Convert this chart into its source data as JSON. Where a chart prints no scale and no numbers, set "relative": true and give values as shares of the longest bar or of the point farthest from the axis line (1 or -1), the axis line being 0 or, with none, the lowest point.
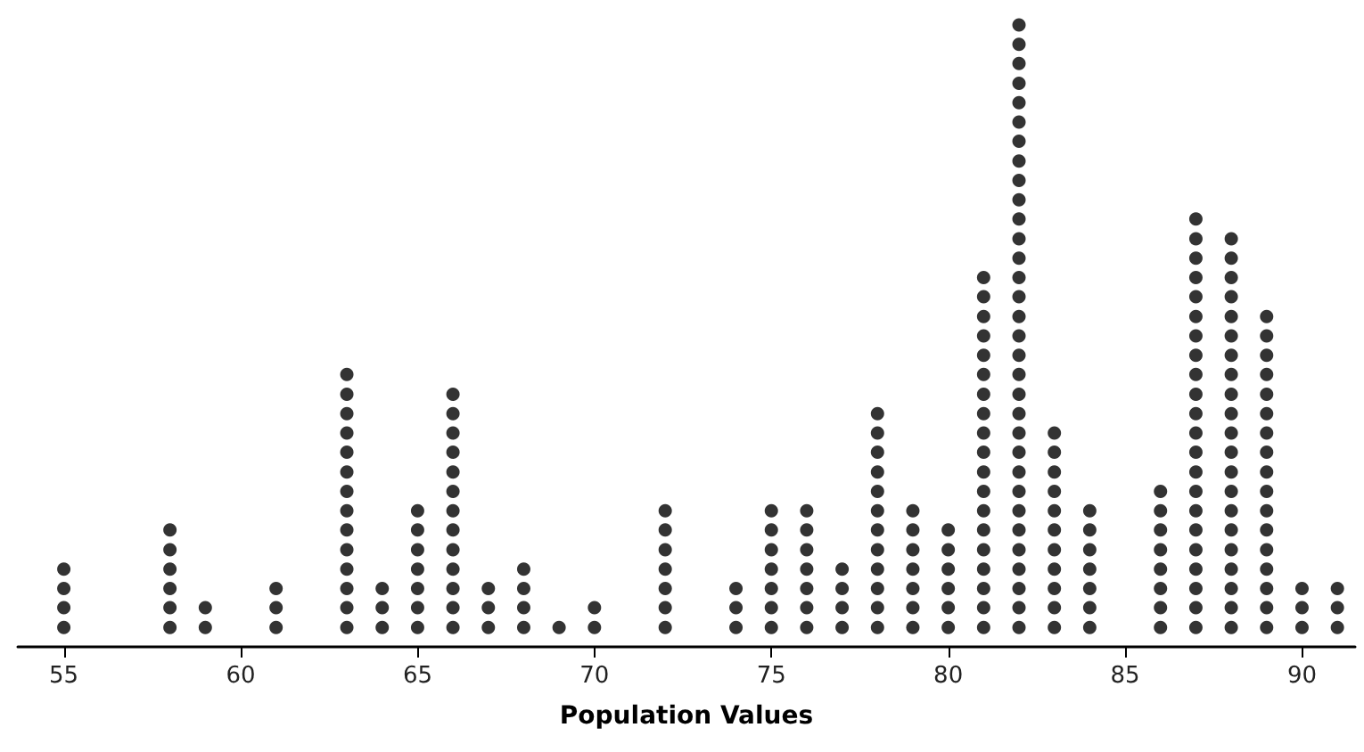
{
  "chart_data": {
    "type": "scatter",
    "xlabel": "Population Values",
    "xlim": [
      53.7,
      91.5
    ],
    "xticks": [
      55,
      60,
      65,
      70,
      75,
      80,
      85,
      90
    ],
    "relative": true,
    "tick_labels": "x",
    "marker": "circle",
    "series": [
      {
        "color": "#000000",
        "x": [
          55,
          55,
          55,
          55,
          58,
          58,
          58,
          58,
          58,
          58,
          59,
          59,
          61,
          61,
          61,
          63,
          63,
          63,
          63,
          63,
          63,
          63,
          63,
          63,
          63,
          63,
          63,
          63,
          63,
          64,
          64,
          64,
          65,
          65,
          65,
          65,
          65,
          65,
          65,
          66,
          66,
          66,
          66,
          66,
          66,
          66,
          66,
          66,
          66,
          66,
          66,
          66,
          67,
          67,
          67,
          68,
          68,
          68,
          68,
          69,
          70,
          70,
          72,
          72,
          72,
          72,
          72,
          72,
          72,
          74,
          74,
          74,
          75,
          75,
          75,
          75,
          75,
          75,
          75,
          76,
          76,
          76,
          76,
          76,
          76,
          76,
          77,
          77,
          77,
          77,
          78,
          78,
          78,
          78,
          78,
          78,
          78,
          78,
          78,
          78,
          78,
          78,
          79,
          79,
          79,
          79,
          79,
          79,
          79,
          80,
          80,
          80,
          80,
          80,
          80,
          81,
          81,
          81,
          81,
          81,
          81,
          81,
          81,
          81,
          81,
          81,
          81,
          81,
          81,
          81,
          81,
          81,
          81,
          81,
          82,
          82,
          82,
          82,
          82,
          82,
          82,
          82,
          82,
          82,
          82,
          82,
          82,
          82,
          82,
          82,
          82,
          82,
          82,
          82,
          82,
          82,
          82,
          82,
          82,
          82,
          82,
          82,
          82,
          82,
          82,
          82,
          83,
          83,
          83,
          83,
          83,
          83,
          83,
          83,
          83,
          83,
          83,
          84,
          84,
          84,
          84,
          84,
          84,
          84,
          86,
          86,
          86,
          86,
          86,
          86,
          86,
          86,
          87,
          87,
          87,
          87,
          87,
          87,
          87,
          87,
          87,
          87,
          87,
          87,
          87,
          87,
          87,
          87,
          87,
          87,
          87,
          87,
          87,
          87,
          88,
          88,
          88,
          88,
          88,
          88,
          88,
          88,
          88,
          88,
          88,
          88,
          88,
          88,
          88,
          88,
          88,
          88,
          88,
          88,
          88,
          89,
          89,
          89,
          89,
          89,
          89,
          89,
          89,
          89,
          89,
          89,
          89,
          89,
          89,
          89,
          89,
          89,
          90,
          90,
          90,
          91,
          91,
          91
        ],
        "values": [
          0.031,
          0.063,
          0.094,
          0.125,
          0.031,
          0.063,
          0.094,
          0.125,
          0.156,
          0.188,
          0.031,
          0.063,
          0.031,
          0.063,
          0.094,
          0.031,
          0.063,
          0.094,
          0.125,
          0.156,
          0.188,
          0.219,
          0.25,
          0.281,
          0.313,
          0.344,
          0.375,
          0.406,
          0.438,
          0.031,
          0.063,
          0.094,
          0.031,
          0.063,
          0.094,
          0.125,
          0.156,
          0.188,
          0.219,
          0.031,
          0.063,
          0.094,
          0.125,
          0.156,
          0.188,
          0.219,
          0.25,
          0.281,
          0.313,
          0.344,
          0.375,
          0.406,
          0.031,
          0.063,
          0.094,
          0.031,
          0.063,
          0.094,
          0.125,
          0.031,
          0.031,
          0.063,
          0.031,
          0.063,
          0.094,
          0.125,
          0.156,
          0.188,
          0.219,
          0.031,
          0.063,
          0.094,
          0.031,
          0.063,
          0.094,
          0.125,
          0.156,
          0.188,
          0.219,
          0.031,
          0.063,
          0.094,
          0.125,
          0.156,
          0.188,
          0.219,
          0.031,
          0.063,
          0.094,
          0.125,
          0.031,
          0.063,
          0.094,
          0.125,
          0.156,
          0.188,
          0.219,
          0.25,
          0.281,
          0.313,
          0.344,
          0.375,
          0.031,
          0.063,
          0.094,
          0.125,
          0.156,
          0.188,
          0.219,
          0.031,
          0.063,
          0.094,
          0.125,
          0.156,
          0.188,
          0.031,
          0.063,
          0.094,
          0.125,
          0.156,
          0.188,
          0.219,
          0.25,
          0.281,
          0.313,
          0.344,
          0.375,
          0.406,
          0.438,
          0.469,
          0.5,
          0.531,
          0.563,
          0.594,
          0.031,
          0.063,
          0.094,
          0.125,
          0.156,
          0.188,
          0.219,
          0.25,
          0.281,
          0.313,
          0.344,
          0.375,
          0.406,
          0.438,
          0.469,
          0.5,
          0.531,
          0.563,
          0.594,
          0.625,
          0.656,
          0.688,
          0.719,
          0.75,
          0.781,
          0.813,
          0.844,
          0.875,
          0.906,
          0.938,
          0.969,
          1,
          0.031,
          0.063,
          0.094,
          0.125,
          0.156,
          0.188,
          0.219,
          0.25,
          0.281,
          0.313,
          0.344,
          0.031,
          0.063,
          0.094,
          0.125,
          0.156,
          0.188,
          0.219,
          0.031,
          0.063,
          0.094,
          0.125,
          0.156,
          0.188,
          0.219,
          0.25,
          0.031,
          0.063,
          0.094,
          0.125,
          0.156,
          0.188,
          0.219,
          0.25,
          0.281,
          0.313,
          0.344,
          0.375,
          0.406,
          0.438,
          0.469,
          0.5,
          0.531,
          0.563,
          0.594,
          0.625,
          0.656,
          0.688,
          0.031,
          0.063,
          0.094,
          0.125,
          0.156,
          0.188,
          0.219,
          0.25,
          0.281,
          0.313,
          0.344,
          0.375,
          0.406,
          0.438,
          0.469,
          0.5,
          0.531,
          0.563,
          0.594,
          0.625,
          0.656,
          0.031,
          0.063,
          0.094,
          0.125,
          0.156,
          0.188,
          0.219,
          0.25,
          0.281,
          0.313,
          0.344,
          0.375,
          0.406,
          0.438,
          0.469,
          0.5,
          0.531,
          0.031,
          0.063,
          0.094,
          0.031,
          0.063,
          0.094
        ]
      }
    ]
  }
}
